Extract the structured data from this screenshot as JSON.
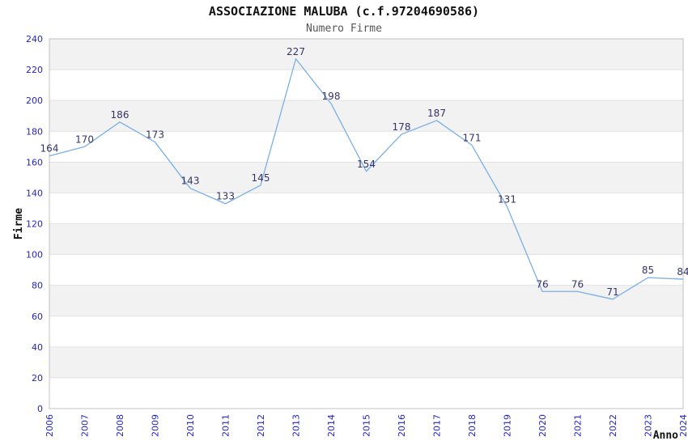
{
  "chart_data": {
    "type": "line",
    "title": "ASSOCIAZIONE MALUBA (c.f.97204690586)",
    "subtitle": "Numero Firme",
    "xlabel": "Anno",
    "ylabel": "Firme",
    "categories": [
      "2006",
      "2007",
      "2008",
      "2009",
      "2010",
      "2011",
      "2012",
      "2013",
      "2014",
      "2015",
      "2016",
      "2017",
      "2018",
      "2019",
      "2020",
      "2021",
      "2022",
      "2023",
      "2024"
    ],
    "values": [
      164,
      170,
      186,
      173,
      143,
      133,
      145,
      227,
      198,
      154,
      178,
      187,
      171,
      131,
      76,
      76,
      71,
      85,
      84
    ],
    "ylim": [
      0,
      240
    ],
    "ytick_step": 20,
    "grid": "horizontal-bands-alternating",
    "legend": "none",
    "data_labels": "above-points",
    "x_tick_rotation": -90,
    "colors": {
      "line": "#79afe6",
      "tick_label": "#2424cc",
      "data_label": "#333366",
      "band": "#f2f2f2",
      "gridline": "#e2e2e2",
      "border": "#c0c0c0",
      "title": "#111111",
      "subtitle": "#555555",
      "axis_title": "#111111",
      "background": "#ffffff"
    }
  }
}
